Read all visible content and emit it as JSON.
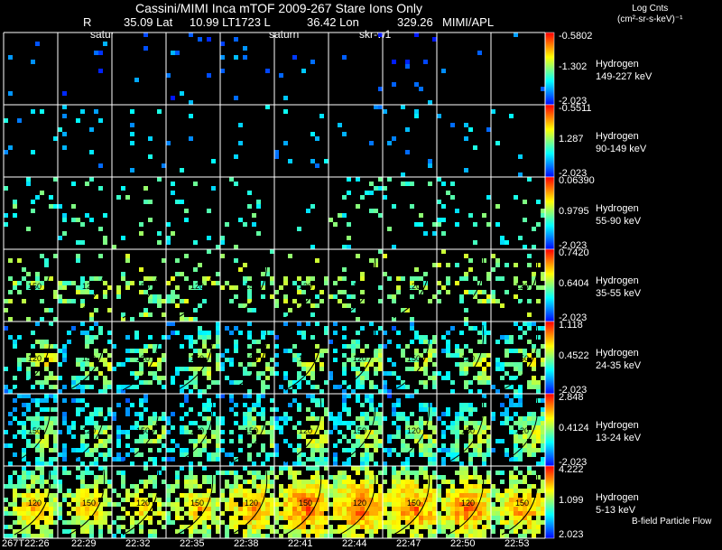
{
  "header": {
    "title": "Cassini/MIMI Inca mTOF  2009-267   Stare    Ions Only",
    "info_r": "R",
    "info_lat": "35.09 Lat",
    "info_lt": "10.99 LT",
    "info_l": "1723 L",
    "info_lon": "36.42 Lon",
    "info_val": "329.26",
    "info_inst": "MIMI/APL",
    "overlay_labels": [
      "satur",
      "saturn",
      "skr-w1"
    ]
  },
  "units": {
    "line1": "Log Cnts",
    "line2": "(cm²-sr-s-keV)⁻¹"
  },
  "footer": {
    "note": "B-field Particle Flow"
  },
  "colors": {
    "scale": [
      "#ff0000",
      "#ff8000",
      "#ffff00",
      "#80ff80",
      "#00ffff",
      "#0080ff",
      "#0000ff"
    ],
    "background": "#000000",
    "grid": "#ffffff"
  },
  "chart_data": {
    "type": "heatmap",
    "title": "Cassini/MIMI Inca mTOF 2009-267 Stare Ions Only",
    "times": [
      "267T22:26",
      "22:29",
      "22:32",
      "22:35",
      "22:38",
      "22:41",
      "22:44",
      "22:47",
      "22:50",
      "22:53"
    ],
    "rows": [
      {
        "species": "Hydrogen",
        "energy": "149-227 keV",
        "max": "-0.5802",
        "mid": "-1.302",
        "min": "-2.023",
        "density": [
          0.02,
          0.02,
          0.02,
          0.02,
          0.03,
          0.03,
          0.03,
          0.04,
          0.03,
          0.02
        ],
        "level": [
          0.85,
          0.85,
          0.85,
          0.85,
          0.85,
          0.85,
          0.85,
          0.85,
          0.85,
          0.85
        ]
      },
      {
        "species": "Hydrogen",
        "energy": "90-149 keV",
        "max": "-0.5511",
        "mid": "1.287",
        "min": "-2.023",
        "density": [
          0.04,
          0.05,
          0.04,
          0.03,
          0.04,
          0.05,
          0.04,
          0.04,
          0.04,
          0.03
        ],
        "level": [
          0.75,
          0.75,
          0.75,
          0.75,
          0.75,
          0.75,
          0.75,
          0.75,
          0.75,
          0.75
        ]
      },
      {
        "species": "Hydrogen",
        "energy": "55-90 keV",
        "max": "0.06390",
        "mid": "0.9795",
        "min": "-2.023",
        "density": [
          0.08,
          0.09,
          0.07,
          0.07,
          0.08,
          0.08,
          0.09,
          0.09,
          0.08,
          0.07
        ],
        "level": [
          0.6,
          0.6,
          0.58,
          0.6,
          0.6,
          0.6,
          0.6,
          0.6,
          0.6,
          0.6
        ]
      },
      {
        "species": "Hydrogen",
        "energy": "35-55 keV",
        "max": "0.7420",
        "mid": "0.6404",
        "min": "-2.023",
        "density": [
          0.14,
          0.14,
          0.12,
          0.13,
          0.13,
          0.13,
          0.13,
          0.14,
          0.15,
          0.14
        ],
        "level": [
          0.5,
          0.5,
          0.48,
          0.48,
          0.5,
          0.5,
          0.5,
          0.48,
          0.48,
          0.5
        ]
      },
      {
        "species": "Hydrogen",
        "energy": "24-35 keV",
        "max": "1.118",
        "mid": "0.4522",
        "min": "-2.023",
        "density": [
          0.25,
          0.22,
          0.2,
          0.22,
          0.22,
          0.22,
          0.22,
          0.24,
          0.25,
          0.24
        ],
        "level": [
          0.32,
          0.36,
          0.36,
          0.35,
          0.35,
          0.35,
          0.36,
          0.36,
          0.34,
          0.33
        ]
      },
      {
        "species": "Hydrogen",
        "energy": "13-24 keV",
        "max": "2.848",
        "mid": "0.4124",
        "min": "-2.023",
        "density": [
          0.35,
          0.3,
          0.28,
          0.3,
          0.3,
          0.32,
          0.34,
          0.35,
          0.35,
          0.33
        ],
        "level": [
          0.38,
          0.4,
          0.4,
          0.38,
          0.36,
          0.34,
          0.36,
          0.38,
          0.36,
          0.36
        ]
      },
      {
        "species": "Hydrogen",
        "energy": "5-13 keV",
        "max": "4.222",
        "mid": "1.099",
        "min": "2.023",
        "density": [
          0.45,
          0.4,
          0.35,
          0.4,
          0.45,
          0.55,
          0.55,
          0.55,
          0.55,
          0.45
        ],
        "level": [
          0.22,
          0.25,
          0.25,
          0.22,
          0.18,
          0.12,
          0.12,
          0.14,
          0.14,
          0.18
        ]
      }
    ],
    "contour_labels": [
      "120",
      "150"
    ]
  }
}
